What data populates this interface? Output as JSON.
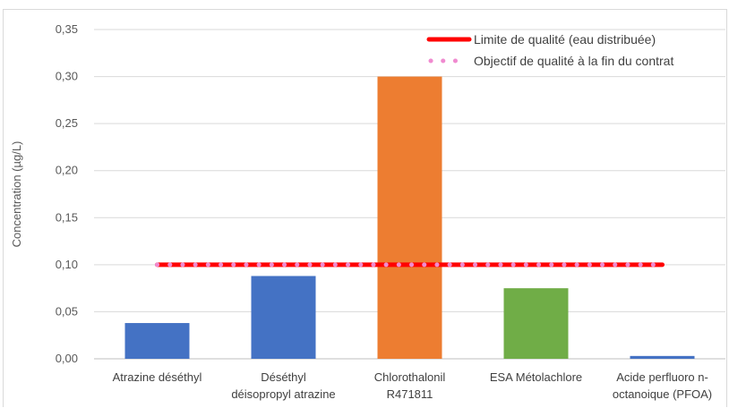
{
  "chart_data": {
    "type": "bar",
    "ylabel": "Concentration (µg/L)",
    "ylim": [
      0,
      0.35
    ],
    "yticks": [
      0,
      0.05,
      0.1,
      0.15,
      0.2,
      0.25,
      0.3,
      0.35
    ],
    "ytick_labels": [
      "0,00",
      "0,05",
      "0,10",
      "0,15",
      "0,20",
      "0,25",
      "0,30",
      "0,35"
    ],
    "grid": true,
    "legend_position": "top-right",
    "categories": [
      [
        "Atrazine déséthyl"
      ],
      [
        "Déséthyl",
        "déisopropyl atrazine"
      ],
      [
        "Chlorothalonil",
        "R471811"
      ],
      [
        "ESA Métolachlore"
      ],
      [
        "Acide perfluoro n-",
        "octanoique (PFOA)"
      ]
    ],
    "values": [
      0.038,
      0.088,
      0.3,
      0.075,
      0.003
    ],
    "bar_colors": [
      "#4472c4",
      "#4472c4",
      "#ed7d31",
      "#70ad47",
      "#4472c4"
    ],
    "reference_lines": [
      {
        "name": "Limite de qualité (eau distribuée)",
        "value": 0.1,
        "color": "#ff0000",
        "style": "solid"
      },
      {
        "name": "Objectif de qualité à la fin du contrat",
        "value": 0.1,
        "color": "#f08bd0",
        "style": "dotted"
      }
    ]
  }
}
